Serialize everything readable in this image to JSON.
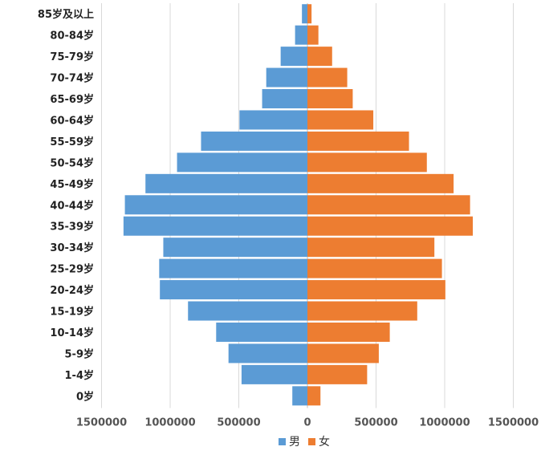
{
  "chart_data": {
    "type": "bar",
    "orientation": "horizontal",
    "layout": "population-pyramid",
    "title": "",
    "xlabel": "",
    "ylabel": "",
    "categories": [
      "85岁及以上",
      "80-84岁",
      "75-79岁",
      "70-74岁",
      "65-69岁",
      "60-64岁",
      "55-59岁",
      "50-54岁",
      "45-49岁",
      "40-44岁",
      "35-39岁",
      "30-34岁",
      "25-29岁",
      "20-24岁",
      "15-19岁",
      "10-14岁",
      "5-9岁",
      "1-4岁",
      "0岁"
    ],
    "series": [
      {
        "name": "男",
        "color": "#5b9bd5",
        "side": "left",
        "values": [
          40000,
          90000,
          195000,
          300000,
          330000,
          495000,
          775000,
          950000,
          1180000,
          1330000,
          1340000,
          1050000,
          1080000,
          1075000,
          870000,
          665000,
          575000,
          480000,
          110000
        ]
      },
      {
        "name": "女",
        "color": "#ed7d31",
        "side": "right",
        "values": [
          30000,
          80000,
          180000,
          290000,
          330000,
          480000,
          740000,
          870000,
          1065000,
          1185000,
          1205000,
          925000,
          980000,
          1005000,
          800000,
          600000,
          520000,
          435000,
          95000
        ]
      }
    ],
    "xlim": [
      -1500000,
      1500000
    ],
    "xticks": [
      -1500000,
      -1000000,
      -500000,
      0,
      500000,
      1000000,
      1500000
    ],
    "xtick_labels": [
      "1500000",
      "1000000",
      "500000",
      "0",
      "500000",
      "1000000",
      "1500000"
    ],
    "grid": true,
    "legend": {
      "position": "bottom",
      "entries": [
        "男",
        "女"
      ]
    }
  }
}
